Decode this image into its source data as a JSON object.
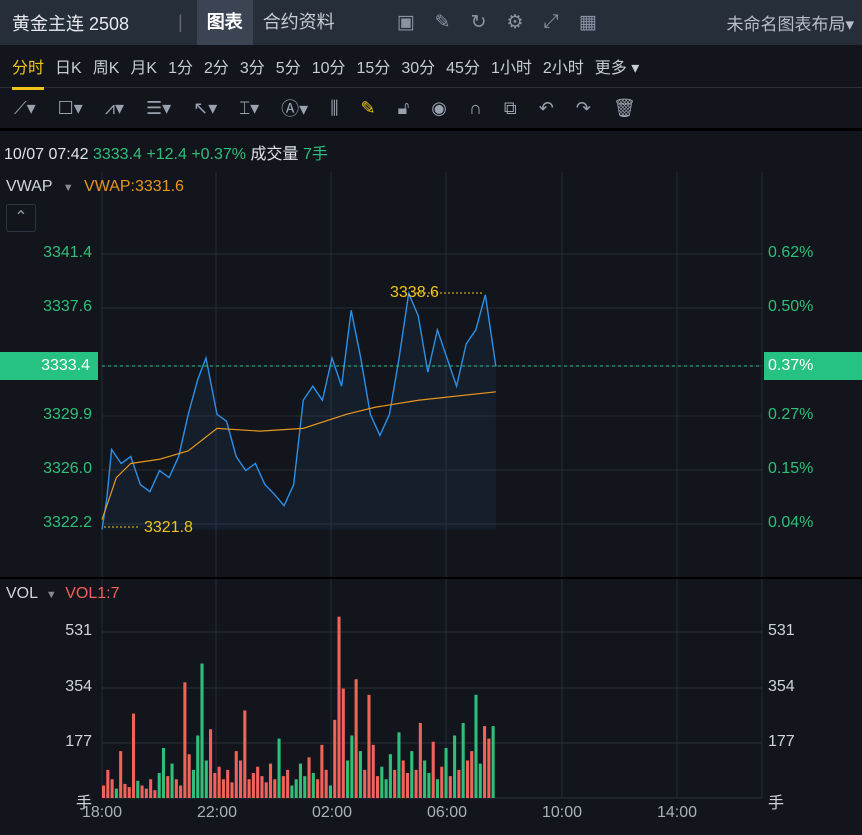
{
  "header": {
    "symbol": "黄金主连 2508",
    "tabs": [
      "图表",
      "合约资料"
    ],
    "icons": [
      "chart-icon",
      "edit-icon",
      "refresh-icon",
      "gear-icon",
      "fullscreen-icon",
      "grid-icon"
    ],
    "layout": "未命名图表布局▾"
  },
  "periods": [
    "分时",
    "日K",
    "周K",
    "月K",
    "1分",
    "2分",
    "3分",
    "5分",
    "10分",
    "15分",
    "30分",
    "45分",
    "1小时",
    "2小时",
    "更多 ▾"
  ],
  "tools": [
    "line-tool-icon",
    "rectangle-tool-icon",
    "pattern-tool-icon",
    "fib-tool-icon",
    "arrow-tool-icon",
    "measure-tool-icon",
    "text-tool-icon",
    "candle-tool-icon",
    "pencil-icon",
    "unlock-icon",
    "eye-icon",
    "magnet-icon",
    "duplicate-icon",
    "undo-icon",
    "redo-icon",
    "trash-icon"
  ],
  "info": {
    "time": "10/07 07:42",
    "price": "3333.4",
    "change": "+12.4",
    "pct": "+0.37%",
    "vol_label": "成交量",
    "vol": "7手"
  },
  "indicator": {
    "name": "VWAP",
    "value": "VWAP:3331.6"
  },
  "vol_indicator": {
    "name": "VOL",
    "value": "VOL1:7"
  },
  "colors": {
    "up": "#f0625a",
    "down": "#2fbf7b",
    "price": "#2d8fe6",
    "vwap": "#e8961e",
    "accent": "#26c281"
  },
  "chart_data": [
    {
      "type": "line",
      "x_ticks": [
        "18:00",
        "22:00",
        "02:00",
        "06:00",
        "10:00",
        "14:00"
      ],
      "y_ticks_left": [
        "3341.4",
        "3337.6",
        "3333.4",
        "3329.9",
        "3326.0",
        "3322.2"
      ],
      "y_ticks_right": [
        "0.62%",
        "0.50%",
        "0.37%",
        "0.27%",
        "0.15%",
        "0.04%"
      ],
      "current": "3333.4",
      "current_pct": "0.37%",
      "high_label": "3338.6",
      "low_label": "3321.8",
      "series": [
        {
          "name": "price",
          "x": [
            "18:00",
            "18:10",
            "18:20",
            "18:40",
            "19:00",
            "19:20",
            "19:40",
            "20:00",
            "20:20",
            "20:40",
            "21:00",
            "21:20",
            "21:37",
            "22:00",
            "22:20",
            "22:40",
            "23:00",
            "23:20",
            "23:40",
            "00:00",
            "00:20",
            "00:40",
            "01:00",
            "01:20",
            "01:40",
            "02:00",
            "02:20",
            "02:40",
            "03:00",
            "03:20",
            "03:40",
            "04:00",
            "04:20",
            "04:40",
            "05:00",
            "05:20",
            "05:40",
            "06:00",
            "06:20",
            "06:40",
            "07:00",
            "07:20",
            "07:42"
          ],
          "y": [
            3321.8,
            3324,
            3327.5,
            3326.5,
            3327,
            3325,
            3324.5,
            3326,
            3325.5,
            3327,
            3330,
            3332.5,
            3334,
            3330,
            3329.5,
            3327,
            3326,
            3326.5,
            3325,
            3324.3,
            3323.5,
            3325,
            3331,
            3332,
            3331,
            3334,
            3332,
            3337.4,
            3334,
            3330,
            3328.5,
            3330,
            3334,
            3338.6,
            3337,
            3333,
            3336,
            3334,
            3332,
            3335,
            3336,
            3338.5,
            3333.4
          ]
        },
        {
          "name": "VWAP",
          "x": [
            "18:00",
            "18:30",
            "19:00",
            "20:00",
            "21:00",
            "22:00",
            "23:30",
            "01:00",
            "02:30",
            "03:30",
            "05:00",
            "07:42"
          ],
          "y": [
            3322.5,
            3325.5,
            3326.5,
            3326.8,
            3327.4,
            3329,
            3328.8,
            3329,
            3330,
            3330.5,
            3331,
            3331.6
          ]
        }
      ]
    },
    {
      "type": "bar",
      "y_ticks": [
        "531",
        "354",
        "177"
      ],
      "unit": "手",
      "ylim": [
        0,
        600
      ],
      "values": [
        40,
        90,
        60,
        30,
        150,
        45,
        35,
        270,
        55,
        40,
        30,
        60,
        25,
        80,
        160,
        70,
        110,
        60,
        40,
        370,
        140,
        90,
        200,
        430,
        120,
        220,
        80,
        100,
        60,
        90,
        50,
        150,
        120,
        280,
        60,
        80,
        100,
        70,
        50,
        110,
        60,
        190,
        70,
        90,
        40,
        60,
        110,
        70,
        130,
        80,
        60,
        170,
        90,
        40,
        250,
        580,
        350,
        120,
        200,
        380,
        150,
        90,
        330,
        170,
        70,
        100,
        60,
        140,
        90,
        210,
        120,
        80,
        150,
        90,
        240,
        120,
        80,
        180,
        60,
        100,
        160,
        70,
        200,
        90,
        240,
        120,
        150,
        330,
        110,
        230,
        190,
        230
      ]
    }
  ]
}
